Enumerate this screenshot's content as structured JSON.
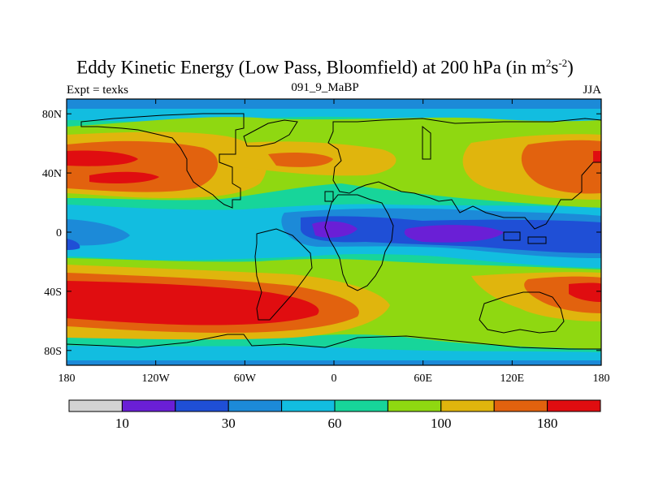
{
  "title_main": "Eddy Kinetic Energy (Low Pass, Bloomfield) at 200 hPa (in m",
  "title_sup1": "2",
  "title_mid": "s",
  "title_sup2": "-2",
  "title_end": ")",
  "left_string": "Expt = texks",
  "center_string": "091_9_MaBP",
  "right_string": "JJA",
  "lat_labels": [
    "80N",
    "40N",
    "0",
    "40S",
    "80S"
  ],
  "lon_labels": [
    "180",
    "120W",
    "60W",
    "0",
    "60E",
    "120E",
    "180"
  ],
  "colorbar": {
    "colors": [
      "#d3d3d3",
      "#6a1fd6",
      "#1f4fd6",
      "#1c8ad8",
      "#12bde0",
      "#17d59a",
      "#8fd811",
      "#e0b50d",
      "#e2620e",
      "#e00d10"
    ],
    "labels": [
      {
        "value": "10",
        "pos": 1
      },
      {
        "value": "30",
        "pos": 3
      },
      {
        "value": "60",
        "pos": 5
      },
      {
        "value": "100",
        "pos": 7
      },
      {
        "value": "180",
        "pos": 9
      }
    ]
  },
  "map_colors": {
    "gray": "#d3d3d3",
    "violet": "#6a1fd6",
    "blue": "#1f4fd6",
    "mid_blue": "#1c8ad8",
    "cyan": "#12bde0",
    "teal": "#17d59a",
    "green": "#8fd811",
    "yellow": "#e0b50d",
    "orange": "#e2620e",
    "red": "#e00d10"
  }
}
